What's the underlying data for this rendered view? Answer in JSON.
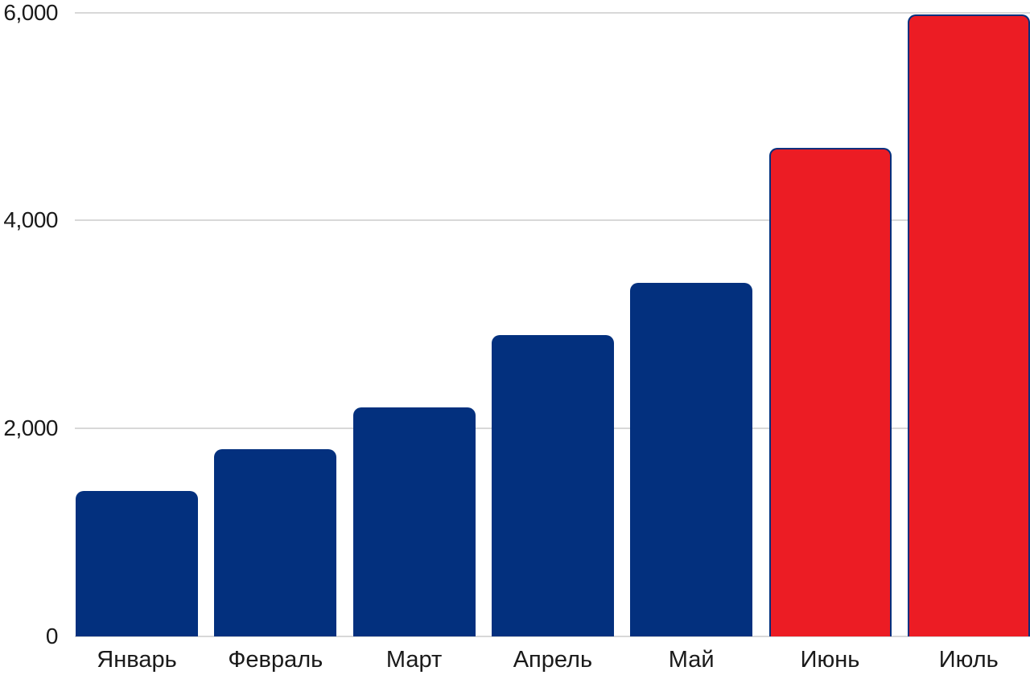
{
  "chart_data": {
    "type": "bar",
    "title": "",
    "xlabel": "",
    "ylabel": "",
    "categories": [
      "Январь",
      "Февраль",
      "Март",
      "Апрель",
      "Май",
      "Июнь",
      "Июль"
    ],
    "category_slugs": [
      "january",
      "february",
      "march",
      "april",
      "may",
      "june",
      "july"
    ],
    "values": [
      1400,
      1800,
      2200,
      2900,
      3400,
      4700,
      5980
    ],
    "highlighted": [
      false,
      false,
      false,
      false,
      false,
      true,
      true
    ],
    "ylim": [
      0,
      6000
    ],
    "yticks": [
      0,
      2000,
      4000,
      6000
    ],
    "ytick_labels": [
      "0",
      "2,000",
      "4,000",
      "6,000"
    ],
    "grid": true,
    "legend": false,
    "colors": {
      "bar": "#03307E",
      "bar_highlight": "#EC1C24",
      "highlight_border": "#03307E",
      "gridline": "#D8D8D8",
      "axis_text": "#1A1A1A",
      "background": "#FFFFFF"
    }
  }
}
